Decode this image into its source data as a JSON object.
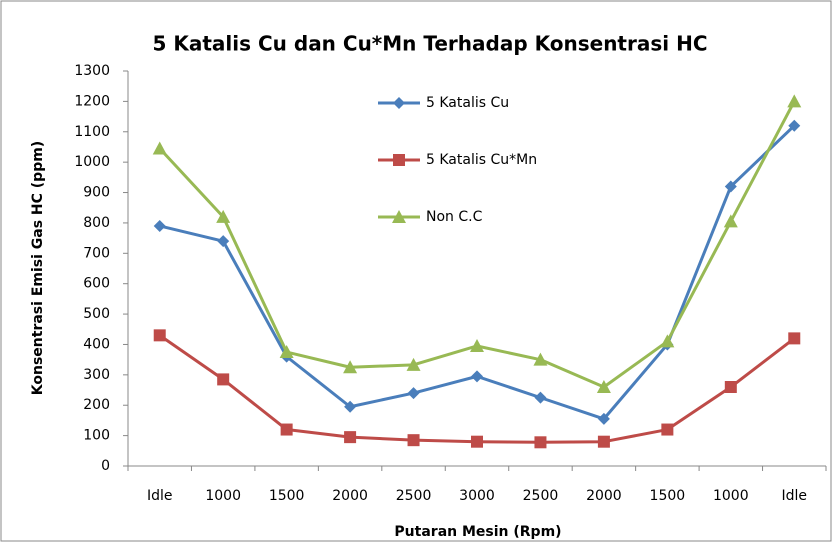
{
  "chart_data": {
    "type": "line",
    "title": "5 Katalis Cu dan Cu*Mn Terhadap Konsentrasi HC",
    "x_label": "Putaran Mesin (Rpm)",
    "y_label": "Konsentrasi Emisi Gas HC (ppm)",
    "categories": [
      "Idle",
      "1000",
      "1500",
      "2000",
      "2500",
      "3000",
      "2500",
      "2000",
      "1500",
      "1000",
      "Idle"
    ],
    "series": [
      {
        "name": "5 Katalis Cu",
        "color": "#4a7ebb",
        "marker": "diamond",
        "values": [
          790,
          740,
          360,
          195,
          240,
          295,
          225,
          155,
          400,
          920,
          1120
        ]
      },
      {
        "name": "5 Katalis Cu*Mn",
        "color": "#be4b48",
        "marker": "square",
        "values": [
          430,
          285,
          120,
          95,
          85,
          80,
          78,
          80,
          120,
          260,
          420
        ]
      },
      {
        "name": "Non C.C",
        "color": "#98b954",
        "marker": "triangle",
        "values": [
          1045,
          820,
          375,
          325,
          333,
          395,
          350,
          260,
          410,
          805,
          1200
        ]
      }
    ],
    "ylim": [
      0,
      1300
    ],
    "yticks": [
      0,
      100,
      200,
      300,
      400,
      500,
      600,
      700,
      800,
      900,
      1000,
      1100,
      1200,
      1300
    ],
    "grid": false
  }
}
